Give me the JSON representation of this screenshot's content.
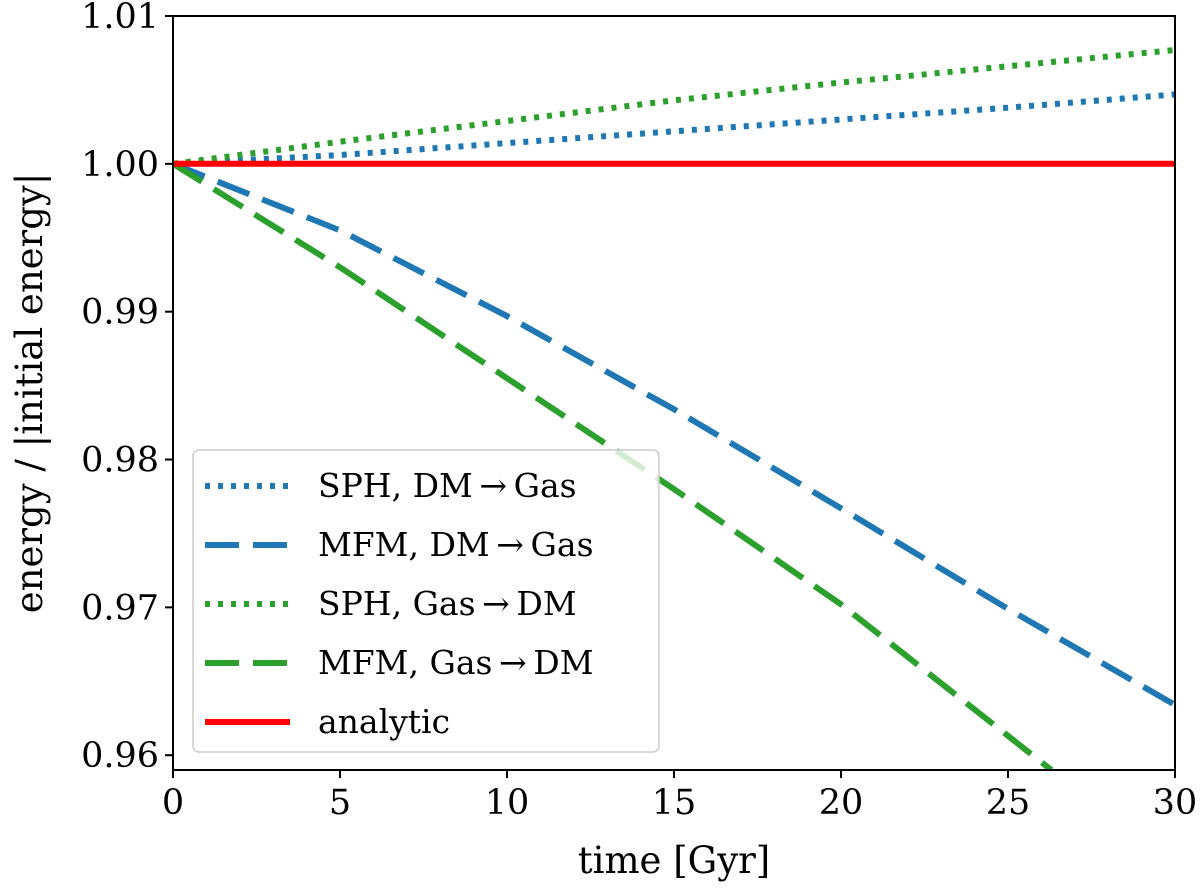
{
  "chart_data": {
    "type": "line",
    "title": "",
    "xlabel": "time [Gyr]",
    "ylabel": "energy / |initial energy|",
    "xlim": [
      0,
      30
    ],
    "ylim": [
      0.959,
      1.01
    ],
    "xticks": [
      0,
      5,
      10,
      15,
      20,
      25,
      30
    ],
    "xtick_labels": [
      "0",
      "5",
      "10",
      "15",
      "20",
      "25",
      "30"
    ],
    "yticks": [
      0.96,
      0.97,
      0.98,
      0.99,
      1.0,
      1.01
    ],
    "ytick_labels": [
      "0.96",
      "0.97",
      "0.98",
      "0.99",
      "1.00",
      "1.01"
    ],
    "grid": false,
    "legend_position": "lower-left",
    "series": [
      {
        "name": "SPH, DM → Gas",
        "color": "#1f77b4",
        "style": "dotted",
        "x": [
          0,
          5,
          10,
          15,
          20,
          25,
          30
        ],
        "y": [
          1.0,
          1.0006,
          1.0014,
          1.0022,
          1.003,
          1.0038,
          1.0047
        ]
      },
      {
        "name": "MFM, DM → Gas",
        "color": "#1f77b4",
        "style": "dashed",
        "x": [
          0,
          5,
          10,
          15,
          20,
          25,
          30
        ],
        "y": [
          1.0,
          0.9955,
          0.9897,
          0.9834,
          0.9767,
          0.9699,
          0.9634
        ]
      },
      {
        "name": "SPH, Gas → DM",
        "color": "#2ca02c",
        "style": "dotted",
        "x": [
          0,
          5,
          10,
          15,
          20,
          25,
          30
        ],
        "y": [
          1.0,
          1.0015,
          1.0029,
          1.0043,
          1.0055,
          1.0066,
          1.0077
        ]
      },
      {
        "name": "MFM, Gas → DM",
        "color": "#2ca02c",
        "style": "dashed",
        "x": [
          0,
          5,
          10,
          15,
          20,
          26.3
        ],
        "y": [
          1.0,
          0.993,
          0.9855,
          0.978,
          0.9702,
          0.959
        ]
      },
      {
        "name": "analytic",
        "color": "#ff0000",
        "style": "solid",
        "x": [
          0,
          30
        ],
        "y": [
          1.0,
          1.0
        ]
      }
    ]
  }
}
